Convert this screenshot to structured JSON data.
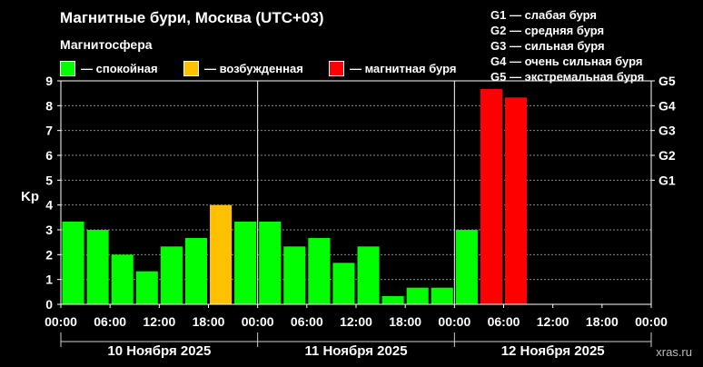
{
  "header": {
    "title": "Магнитные бури, Москва (UTC+03)",
    "subtitle": "Магнитосфера"
  },
  "legend": [
    {
      "label": "— спокойная",
      "color": "#00ff00"
    },
    {
      "label": "— возбужденная",
      "color": "#ffc000"
    },
    {
      "label": "— магнитная буря",
      "color": "#ff0000"
    }
  ],
  "storm_scale": [
    "G1 — слабая буря",
    "G2 — средняя буря",
    "G3 — сильная буря",
    "G4 — очень сильная буря",
    "G5 — экстремальная буря"
  ],
  "watermark": "xras.ru",
  "chart_data": {
    "type": "bar",
    "ylabel": "Kp",
    "ylim": [
      0,
      9
    ],
    "y_ticks": [
      0,
      1,
      2,
      3,
      4,
      5,
      6,
      7,
      8,
      9
    ],
    "right_ticks": [
      {
        "label": "G1",
        "kp": 5
      },
      {
        "label": "G2",
        "kp": 6
      },
      {
        "label": "G3",
        "kp": 7
      },
      {
        "label": "G4",
        "kp": 8
      },
      {
        "label": "G5",
        "kp": 9
      }
    ],
    "x_tick_labels": [
      "00:00",
      "06:00",
      "12:00",
      "18:00",
      "00:00",
      "06:00",
      "12:00",
      "18:00",
      "00:00",
      "06:00",
      "12:00",
      "18:00",
      "00:00"
    ],
    "days": [
      "10 Ноября 2025",
      "11 Ноября 2025",
      "12 Ноября 2025"
    ],
    "slots_per_day": 8,
    "grid": true,
    "colors": {
      "quiet": "#00ff00",
      "active": "#ffc000",
      "storm": "#ff0000"
    },
    "values": [
      3.33,
      3.0,
      2.0,
      1.33,
      2.33,
      2.67,
      4.0,
      3.33,
      3.33,
      2.33,
      2.67,
      1.67,
      2.33,
      0.33,
      0.67,
      0.67,
      3.0,
      8.67,
      8.33
    ]
  }
}
